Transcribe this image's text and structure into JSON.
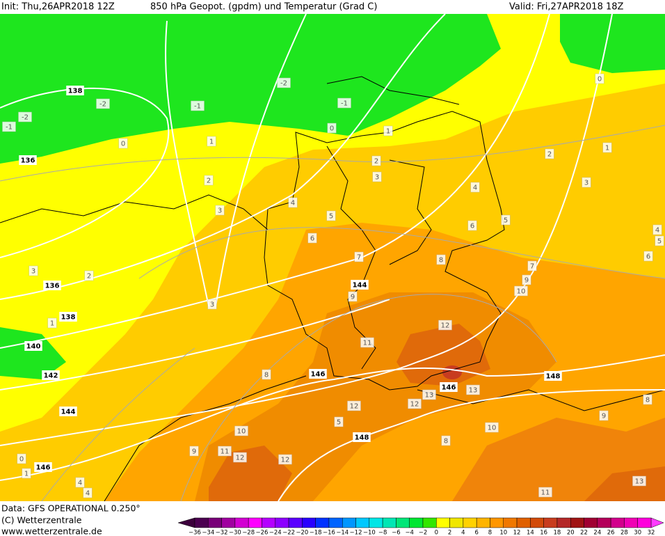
{
  "header": {
    "init": "Init: Thu,26APR2018 12Z",
    "parameter": "850 hPa Geopot. (gpdm) und Temperatur (Grad C)",
    "valid": "Valid: Fri,27APR2018 18Z"
  },
  "footer": {
    "source": "Data: GFS OPERATIONAL 0.250°",
    "copyright": "(C) Wetterzentrale",
    "url": "www.wetterzentrale.de"
  },
  "colorbar": {
    "ticks": [
      "−36",
      "−34",
      "−32",
      "−30",
      "−28",
      "−26",
      "−24",
      "−22",
      "−20",
      "−18",
      "−16",
      "−14",
      "−12",
      "−10",
      "−8",
      "−6",
      "−4",
      "−2",
      "0",
      "2",
      "4",
      "6",
      "8",
      "10",
      "12",
      "14",
      "16",
      "18",
      "20",
      "22",
      "24",
      "26",
      "28",
      "30",
      "32"
    ],
    "colors": [
      "#4b0050",
      "#780078",
      "#a000a0",
      "#d200d2",
      "#ff00ff",
      "#b400ff",
      "#8c00ff",
      "#5a00ff",
      "#2800ff",
      "#0032ff",
      "#0064ff",
      "#0096ff",
      "#00c8ff",
      "#00e6e6",
      "#00e6b4",
      "#00e678",
      "#00e632",
      "#32e600",
      "#ffff00",
      "#f0e600",
      "#ffd200",
      "#ffb400",
      "#ff9600",
      "#f07800",
      "#e06000",
      "#d24b0a",
      "#c83c1e",
      "#b42828",
      "#a01414",
      "#a00032",
      "#b4005a",
      "#d2008c",
      "#f000b4",
      "#ff00dc"
    ],
    "low_color": "#3c003c",
    "high_color": "#ff3cff"
  },
  "map": {
    "geopotential_labels": [
      "138",
      "136",
      "136",
      "138",
      "140",
      "142",
      "144",
      "146",
      "144",
      "146",
      "146",
      "148",
      "148"
    ],
    "temperature_labels": [
      "-2",
      "-1",
      "-1",
      "-2",
      "-2",
      "-1",
      "0",
      "0",
      "0",
      "1",
      "1",
      "1",
      "2",
      "2",
      "2",
      "3",
      "3",
      "3",
      "4",
      "4",
      "4",
      "5",
      "5",
      "5",
      "6",
      "6",
      "6",
      "7",
      "7",
      "8",
      "9",
      "10",
      "3",
      "2",
      "1",
      "3",
      "9",
      "12",
      "11",
      "8",
      "12",
      "12",
      "13",
      "13",
      "10",
      "5",
      "10",
      "9",
      "8",
      "8",
      "9",
      "11",
      "12",
      "12",
      "0",
      "1",
      "4",
      "4",
      "11",
      "13"
    ]
  }
}
